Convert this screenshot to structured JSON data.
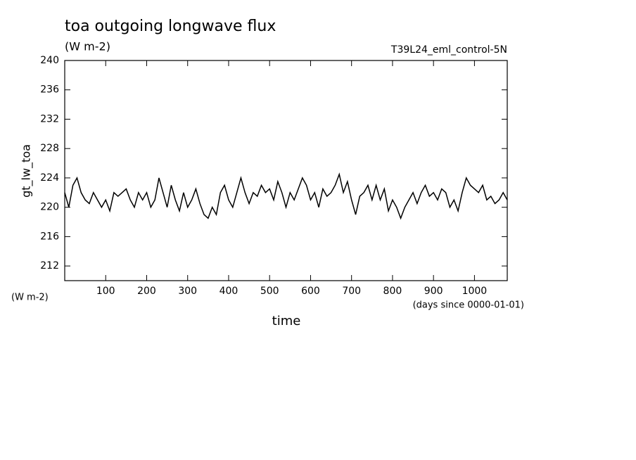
{
  "chart_data": {
    "type": "line",
    "title": "toa outgoing longwave flux",
    "subtitle": "(W m-2)",
    "run_label": "T39L24_eml_control-5N",
    "y_label": "gt_lw_toa",
    "y_units": "(W m-2)",
    "x_label": "time",
    "x_units": "(days since 0000-01-01)",
    "color": "#000000",
    "xlim": [
      0,
      1080
    ],
    "ylim": [
      210,
      240
    ],
    "xticks": [
      100,
      200,
      300,
      400,
      500,
      600,
      700,
      800,
      900,
      1000
    ],
    "yticks": [
      212,
      216,
      220,
      224,
      228,
      232,
      236,
      240
    ],
    "x": [
      0,
      10,
      20,
      30,
      40,
      50,
      60,
      70,
      80,
      90,
      100,
      110,
      120,
      130,
      140,
      150,
      160,
      170,
      180,
      190,
      200,
      210,
      220,
      230,
      240,
      250,
      260,
      270,
      280,
      290,
      300,
      310,
      320,
      330,
      340,
      350,
      360,
      370,
      380,
      390,
      400,
      410,
      420,
      430,
      440,
      450,
      460,
      470,
      480,
      490,
      500,
      510,
      520,
      530,
      540,
      550,
      560,
      570,
      580,
      590,
      600,
      610,
      620,
      630,
      640,
      650,
      660,
      670,
      680,
      690,
      700,
      710,
      720,
      730,
      740,
      750,
      760,
      770,
      780,
      790,
      800,
      810,
      820,
      830,
      840,
      850,
      860,
      870,
      880,
      890,
      900,
      910,
      920,
      930,
      940,
      950,
      960,
      970,
      980,
      990,
      1000,
      1010,
      1020,
      1030,
      1040,
      1050,
      1060,
      1070,
      1080
    ],
    "values": [
      222,
      220,
      223,
      224,
      222,
      221,
      220.5,
      222,
      221,
      220,
      221,
      219.5,
      222,
      221.5,
      222,
      222.5,
      221,
      220,
      222,
      221,
      222,
      220,
      221,
      224,
      222,
      220,
      223,
      221,
      219.5,
      222,
      220,
      221,
      222.5,
      220.5,
      219,
      218.5,
      220,
      219,
      222,
      223,
      221,
      220,
      222,
      224,
      222,
      220.5,
      222,
      221.5,
      223,
      222,
      222.5,
      221,
      223.5,
      222,
      220,
      222,
      221,
      222.5,
      224,
      223,
      221,
      222,
      220,
      222.5,
      221.5,
      222,
      223,
      224.5,
      222,
      223.5,
      221,
      219,
      221.5,
      222,
      223,
      221,
      223,
      221,
      222.5,
      219.5,
      221,
      220,
      218.5,
      220,
      221,
      222,
      220.5,
      222,
      223,
      221.5,
      222,
      221,
      222.5,
      222,
      220,
      221,
      219.5,
      222,
      224,
      223,
      222.5,
      222,
      223,
      221,
      221.5,
      220.5,
      221,
      222,
      221
    ]
  }
}
